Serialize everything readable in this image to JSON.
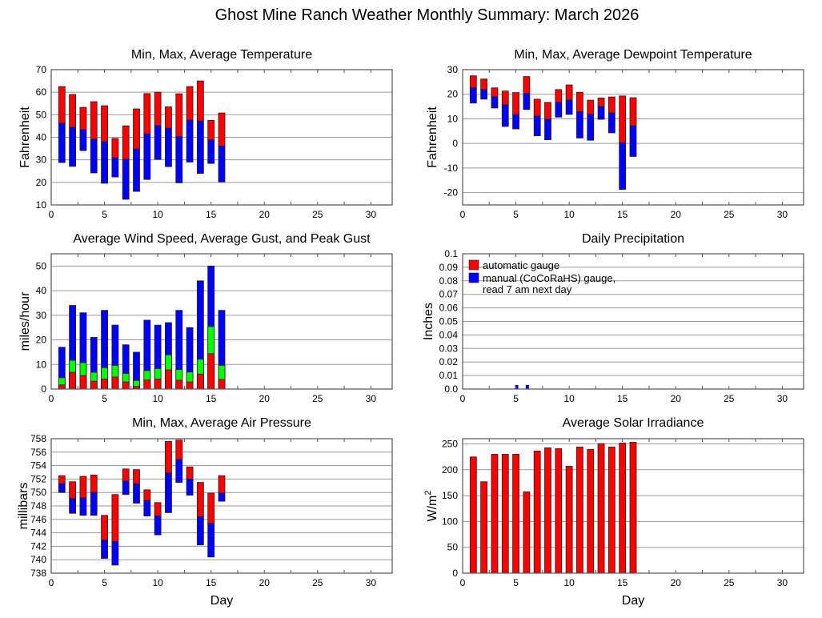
{
  "title": "Ghost Mine Ranch Weather Monthly Summary: March 2026",
  "colors": {
    "red": "#ff0000",
    "blue": "#0000ff",
    "green": "#00ff00",
    "grid": "#9a9a9a",
    "frame": "#555555"
  },
  "chart_data": [
    {
      "id": "temperature",
      "type": "bar",
      "subtype": "floating-range",
      "title": "Min, Max, Average Temperature",
      "xlabel": "",
      "ylabel": "Fahrenheit",
      "xlim": [
        0,
        32
      ],
      "ylim": [
        10,
        70
      ],
      "xticks": [
        0,
        5,
        10,
        15,
        20,
        25,
        30
      ],
      "yticks": [
        10,
        20,
        30,
        40,
        50,
        60,
        70
      ],
      "grid": true,
      "x": [
        1,
        2,
        3,
        4,
        5,
        6,
        7,
        8,
        9,
        10,
        11,
        12,
        13,
        14,
        15,
        16
      ],
      "series": [
        {
          "name": "Max",
          "color": "red",
          "values": [
            62.5,
            59,
            53.3,
            55.8,
            54,
            39.5,
            45.1,
            52.6,
            59.4,
            60,
            53.5,
            59.3,
            62.5,
            65,
            47.5,
            50.8
          ]
        },
        {
          "name": "Average",
          "color": "blue",
          "values": [
            46.2,
            44.4,
            43.4,
            39.1,
            38,
            30.9,
            30.2,
            34.8,
            41.5,
            45.2,
            44,
            40.4,
            47.6,
            47.2,
            38.8,
            36.1
          ]
        },
        {
          "name": "Min",
          "values": [
            28.8,
            27.1,
            34.1,
            24.2,
            19.6,
            22.4,
            12.5,
            16,
            21.3,
            30.2,
            27,
            19.8,
            29,
            24,
            28.4,
            20.2
          ]
        }
      ]
    },
    {
      "id": "dewpoint",
      "type": "bar",
      "subtype": "floating-range",
      "title": "Min, Max, Average Dewpoint Temperature",
      "xlabel": "",
      "ylabel": "Fahrenheit",
      "xlim": [
        0,
        32
      ],
      "ylim": [
        -25,
        30
      ],
      "xticks": [
        0,
        5,
        10,
        15,
        20,
        25,
        30
      ],
      "yticks": [
        -20,
        -10,
        0,
        10,
        20,
        30
      ],
      "grid": true,
      "x": [
        1,
        2,
        3,
        4,
        5,
        6,
        7,
        8,
        9,
        10,
        11,
        12,
        13,
        14,
        15,
        16
      ],
      "series": [
        {
          "name": "Max",
          "color": "red",
          "values": [
            27.5,
            26.2,
            22.6,
            21.3,
            20.7,
            27.2,
            18,
            16.7,
            21.9,
            23.8,
            20.8,
            17.6,
            18.5,
            18.9,
            19.3,
            18.6
          ]
        },
        {
          "name": "Average",
          "color": "blue",
          "values": [
            22.6,
            21.9,
            19,
            15.7,
            11.8,
            20.3,
            11.1,
            9.8,
            16.7,
            17.6,
            12.9,
            11.8,
            15,
            12.4,
            0.3,
            7.2
          ]
        },
        {
          "name": "Min",
          "values": [
            16.4,
            18,
            14.4,
            6.9,
            5.9,
            13.8,
            3.1,
            1.5,
            10.7,
            11.8,
            2.2,
            1.3,
            9.8,
            4.3,
            -18.7,
            -5.3
          ]
        }
      ]
    },
    {
      "id": "wind",
      "type": "bar",
      "subtype": "stacked-overlay",
      "title": "Average Wind Speed, Average Gust, and Peak Gust",
      "xlabel": "",
      "ylabel": "miles/hour",
      "xlim": [
        0,
        32
      ],
      "ylim": [
        0,
        55
      ],
      "xticks": [
        0,
        5,
        10,
        15,
        20,
        25,
        30
      ],
      "yticks": [
        0,
        10,
        20,
        30,
        40,
        50
      ],
      "grid": true,
      "x": [
        1,
        2,
        3,
        4,
        5,
        6,
        7,
        8,
        9,
        10,
        11,
        12,
        13,
        14,
        15,
        16
      ],
      "series": [
        {
          "name": "Peak Gust",
          "color": "blue",
          "values": [
            17,
            34,
            31,
            21,
            32,
            26,
            18,
            15,
            28,
            26,
            27,
            32,
            25,
            44,
            50,
            32
          ]
        },
        {
          "name": "Average Gust",
          "color": "green",
          "values": [
            4.6,
            11.7,
            10.7,
            6.8,
            8.7,
            9.6,
            6.3,
            3.5,
            7.5,
            8.3,
            13.9,
            7.9,
            6.9,
            12.1,
            25.4,
            9.6
          ]
        },
        {
          "name": "Average Wind Speed",
          "color": "red",
          "values": [
            1.7,
            6.8,
            5.5,
            3.2,
            4.1,
            4.9,
            2.9,
            1.1,
            3.7,
            4.1,
            7.8,
            3.6,
            2.9,
            6.1,
            14.4,
            3.9
          ]
        }
      ]
    },
    {
      "id": "precipitation",
      "type": "bar",
      "title": "Daily Precipitation",
      "xlabel": "",
      "ylabel": "Inches",
      "xlim": [
        0,
        32
      ],
      "ylim": [
        0,
        0.1
      ],
      "xticks": [
        0,
        5,
        10,
        15,
        20,
        25,
        30
      ],
      "yticks": [
        0,
        0.01,
        0.02,
        0.03,
        0.04,
        0.05,
        0.06,
        0.07,
        0.08,
        0.09,
        0.1
      ],
      "ytick_labels": [
        "0.0",
        "0.01",
        "0.02",
        "0.03",
        "0.04",
        "0.05",
        "0.06",
        "0.07",
        "0.08",
        "0.09",
        "0.1"
      ],
      "grid": true,
      "legend_position": "top-left",
      "legend": [
        {
          "color": "red",
          "lines": [
            "automatic gauge"
          ]
        },
        {
          "color": "blue",
          "lines": [
            "manual (CoCoRaHS) gauge,",
            "read 7 am next day"
          ]
        }
      ],
      "x": [
        5,
        6
      ],
      "series": [
        {
          "name": "automatic gauge",
          "color": "red",
          "values": [
            0,
            0
          ]
        },
        {
          "name": "manual (CoCoRaHS) gauge",
          "color": "blue",
          "values": [
            0.003,
            0.003
          ]
        }
      ]
    },
    {
      "id": "pressure",
      "type": "bar",
      "subtype": "floating-range",
      "title": "Min, Max, Average Air Pressure",
      "xlabel": "Day",
      "ylabel": "millibars",
      "xlim": [
        0,
        32
      ],
      "ylim": [
        738,
        758
      ],
      "xticks": [
        0,
        5,
        10,
        15,
        20,
        25,
        30
      ],
      "yticks": [
        738,
        740,
        742,
        744,
        746,
        748,
        750,
        752,
        754,
        756,
        758
      ],
      "grid": true,
      "x": [
        1,
        2,
        3,
        4,
        5,
        6,
        7,
        8,
        9,
        10,
        11,
        12,
        13,
        14,
        15,
        16
      ],
      "series": [
        {
          "name": "Max",
          "color": "red",
          "values": [
            752.5,
            751.6,
            752.4,
            752.6,
            746.6,
            749.7,
            753.5,
            753.4,
            750.4,
            748.5,
            757.6,
            757.8,
            753.8,
            751.5,
            749.9,
            752.5
          ]
        },
        {
          "name": "Average",
          "color": "blue",
          "values": [
            751.3,
            749.1,
            749.2,
            750.0,
            742.9,
            742.7,
            751.7,
            751.3,
            748.8,
            746.5,
            752.9,
            754.9,
            752.0,
            746.4,
            745.4,
            749.9
          ]
        },
        {
          "name": "Min",
          "values": [
            750.0,
            746.9,
            746.6,
            746.6,
            740.2,
            739.2,
            749.7,
            748.4,
            746.5,
            743.7,
            747.0,
            751.5,
            749.6,
            742.2,
            740.4,
            748.7
          ]
        }
      ]
    },
    {
      "id": "solar",
      "type": "bar",
      "title": "Average Solar Irradiance",
      "xlabel": "Day",
      "ylabel": "W/m²",
      "ylabel_base": "W/m",
      "ylabel_sup": "2",
      "xlim": [
        0,
        32
      ],
      "ylim": [
        0,
        260
      ],
      "xticks": [
        0,
        5,
        10,
        15,
        20,
        25,
        30
      ],
      "yticks": [
        0,
        50,
        100,
        150,
        200,
        250
      ],
      "grid": true,
      "x": [
        1,
        2,
        3,
        4,
        5,
        6,
        7,
        8,
        9,
        10,
        11,
        12,
        13,
        14,
        15,
        16
      ],
      "series": [
        {
          "name": "Average Solar Irradiance",
          "color": "red",
          "values": [
            224.7,
            176.8,
            229.9,
            229.9,
            229.9,
            157.2,
            236.1,
            242.3,
            240.7,
            206.7,
            243.8,
            239.2,
            250.5,
            243.8,
            251.5,
            253.1
          ]
        }
      ]
    }
  ]
}
